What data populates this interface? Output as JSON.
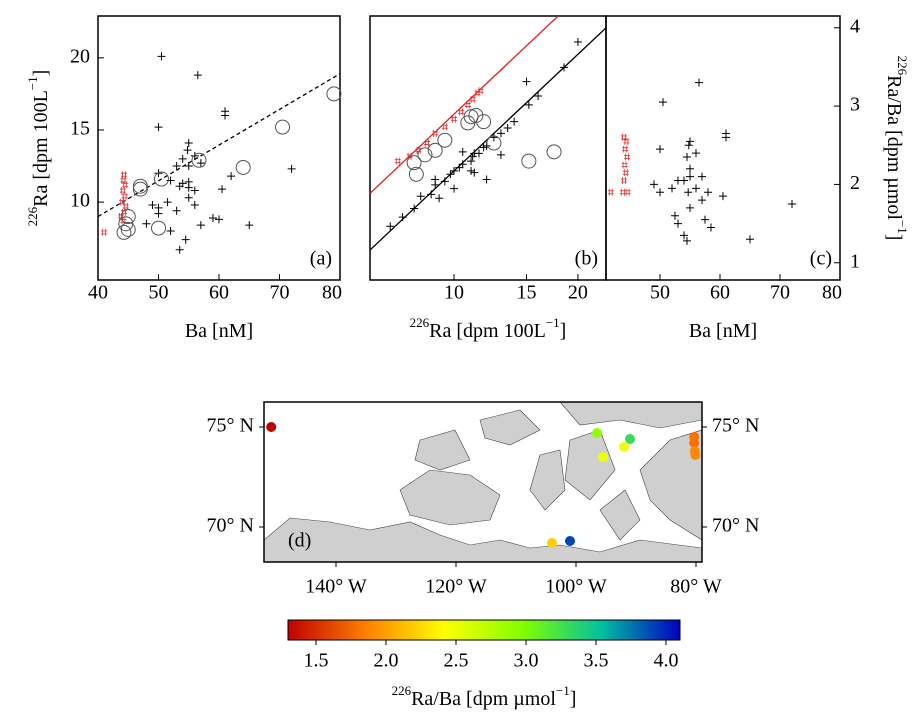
{
  "chart_data": [
    {
      "type": "scatter",
      "label": "(a)",
      "xlabel": [
        {
          "text": "Ba [nM]"
        }
      ],
      "ylabel": [
        {
          "text": "226",
          "sup": true
        },
        {
          "text": "Ra [dpm 100L"
        },
        {
          "text": "−1",
          "sup": true
        },
        {
          "text": "]"
        }
      ],
      "xlim": [
        40,
        80
      ],
      "ylim": [
        4.6,
        22.9
      ],
      "xticks": [
        40,
        50,
        60,
        70,
        80
      ],
      "yticks": [
        10,
        15,
        20
      ],
      "yaxis_side": "left",
      "lines": [
        {
          "color": "#000000",
          "dash": true,
          "x": [
            40,
            80
          ],
          "values": [
            9,
            18.9
          ]
        }
      ],
      "series": [
        {
          "marker": "+",
          "color": "#000000",
          "x": [
            50.5,
            56.5,
            61,
            61,
            50,
            55,
            54.8,
            56,
            54,
            53,
            55,
            57,
            50,
            52,
            54,
            55,
            53.5,
            55,
            56,
            60.5,
            62,
            72,
            49,
            50,
            53,
            55,
            56,
            59,
            60,
            57,
            65,
            52,
            54.5,
            53.5,
            48,
            50,
            51.5
          ],
          "values": [
            20.1,
            18.8,
            16.3,
            16.0,
            15.2,
            14.1,
            13.6,
            13.2,
            13,
            12.5,
            12.5,
            12.7,
            12.0,
            11.5,
            11.3,
            11.4,
            11.1,
            11.0,
            10.8,
            10.9,
            11.8,
            12.3,
            9.8,
            9.6,
            9.4,
            10.3,
            9.8,
            8.9,
            8.8,
            8.4,
            8.4,
            8.0,
            7.4,
            6.7,
            8.5,
            9.2,
            10.0
          ]
        },
        {
          "marker": "#",
          "color": "#e03030",
          "x": [
            44.3,
            44.2,
            44.5,
            44.1,
            44.4,
            44,
            44.6,
            44.3,
            43.8,
            44.2,
            41
          ],
          "values": [
            11.9,
            11.5,
            11.2,
            10.8,
            10.4,
            10,
            9.7,
            9.3,
            9,
            8.7,
            7.9
          ]
        },
        {
          "marker": "o",
          "color": "#555555",
          "x": [
            79,
            70.5,
            56.7,
            64,
            50.5,
            47,
            47,
            50,
            45,
            44.6,
            44.3,
            45
          ],
          "values": [
            17.5,
            15.2,
            12.9,
            12.4,
            11.6,
            11.1,
            10.9,
            8.2,
            9.0,
            8.5,
            7.9,
            8.1
          ]
        }
      ]
    },
    {
      "type": "scatter",
      "label": "(b)",
      "xlabel": [
        {
          "text": "226",
          "sup": true
        },
        {
          "text": "Ra [dpm 100L"
        },
        {
          "text": "−1",
          "sup": true
        },
        {
          "text": "]"
        }
      ],
      "xlim": [
        6.25,
        23.4
      ],
      "ylim": [
        5.23,
        25.1
      ],
      "xlog": true,
      "ylog": true,
      "xticks": [
        10,
        15,
        20
      ],
      "yaxis_side": "none",
      "lines": [
        {
          "color": "#000000",
          "dash": false,
          "x": [
            6.25,
            23.4
          ],
          "values": [
            6.25,
            23.4
          ]
        },
        {
          "color": "#e02020",
          "dash": false,
          "x": [
            6.25,
            17.9
          ],
          "values": [
            8.75,
            25.1
          ]
        }
      ],
      "series": [
        {
          "marker": "+",
          "color": "#000000",
          "x": [
            7,
            7.5,
            8,
            8.3,
            8.8,
            9,
            9.5,
            9.8,
            10,
            10.3,
            10.5,
            11,
            11.1,
            11.2,
            11.5,
            11.8,
            12,
            12.5,
            13,
            13.5,
            14,
            15.2,
            16,
            18.5,
            20,
            10,
            9.2,
            11,
            12,
            10.5,
            15,
            11.2,
            13,
            9
          ],
          "values": [
            7.2,
            7.6,
            8.0,
            8.6,
            8.7,
            9.2,
            9.4,
            9.8,
            10.0,
            10.2,
            10.4,
            10.6,
            10.9,
            11.1,
            11.1,
            11.5,
            11.6,
            12.2,
            12.5,
            12.9,
            13.4,
            14.8,
            15.6,
            18.5,
            21.5,
            9.0,
            8.5,
            10.0,
            9.5,
            11.2,
            17.0,
            9.9,
            11,
            9.5
          ]
        },
        {
          "marker": "#",
          "color": "#e03030",
          "x": [
            7.3,
            7.8,
            8.2,
            8.6,
            9,
            9.5,
            10,
            10.4,
            10.8,
            11.1,
            11.4,
            11.6
          ],
          "values": [
            10.6,
            10.9,
            11.3,
            11.8,
            12.5,
            13.0,
            13.6,
            14.2,
            14.8,
            15.3,
            15.9,
            16.1
          ]
        },
        {
          "marker": "o",
          "color": "#555555",
          "x": [
            8,
            8.5,
            9,
            9.5,
            10.8,
            11.3,
            11.8,
            12.5,
            15.2,
            17.5,
            8.1,
            11
          ],
          "values": [
            10.5,
            11,
            11.3,
            12,
            13.3,
            13.9,
            13.4,
            11.8,
            10.6,
            11.2,
            9.8,
            13.8
          ]
        }
      ]
    },
    {
      "type": "scatter",
      "label": "(c)",
      "xlabel": [
        {
          "text": "Ba [nM]"
        }
      ],
      "ylabel": [
        {
          "text": "226",
          "sup": true
        },
        {
          "text": "Ra/Ba [dpm µmol"
        },
        {
          "text": "−1",
          "sup": true
        },
        {
          "text": "]"
        }
      ],
      "xlim": [
        41,
        80
      ],
      "ylim": [
        0.78,
        4.15
      ],
      "xticks": [
        50,
        60,
        70,
        80
      ],
      "yticks": [
        1,
        2,
        3,
        4
      ],
      "yaxis_side": "right",
      "lines": [],
      "series": [
        {
          "marker": "+",
          "color": "#000000",
          "x": [
            50.5,
            56.5,
            61,
            61,
            50,
            55,
            54.8,
            54.5,
            56,
            55,
            57,
            53,
            54,
            55,
            56,
            49,
            52,
            58,
            60.5,
            55,
            53,
            57.5,
            52.5,
            54,
            54.5,
            65,
            72,
            58.5,
            50,
            54.7,
            57
          ],
          "values": [
            3.05,
            3.3,
            2.65,
            2.6,
            2.45,
            2.55,
            2.5,
            2.35,
            2.4,
            2.2,
            2.1,
            2.05,
            2.05,
            2.1,
            1.95,
            2.0,
            1.95,
            1.9,
            1.85,
            1.7,
            1.5,
            1.55,
            1.6,
            1.35,
            1.28,
            1.3,
            1.75,
            1.45,
            1.9,
            1.9,
            1.8
          ]
        },
        {
          "marker": "#",
          "color": "#e03030",
          "x": [
            44,
            44.4,
            44.2,
            44.5,
            44.1,
            44.3,
            44,
            44.6,
            43.8,
            41.8
          ],
          "values": [
            2.6,
            2.55,
            2.45,
            2.35,
            2.25,
            2.15,
            2.05,
            1.9,
            1.9,
            1.9
          ]
        }
      ]
    },
    {
      "type": "map",
      "label": "(d)",
      "xlim": [
        -152,
        -79
      ],
      "ylim": [
        68.25,
        76.25
      ],
      "xticks": [
        {
          "value": -140,
          "label": "140° W"
        },
        {
          "value": -120,
          "label": "120° W"
        },
        {
          "value": -100,
          "label": "100° W"
        },
        {
          "value": -80,
          "label": "80° W"
        }
      ],
      "yticks": [
        {
          "value": 75,
          "label": "75° N"
        },
        {
          "value": 70,
          "label": "70° N"
        }
      ],
      "points": {
        "x": [
          -150.8,
          -96.5,
          -91,
          -95.5,
          -92,
          -80.3,
          -80.3,
          -80.2,
          -80.1,
          -104,
          -101
        ],
        "y": [
          75,
          74.7,
          74.4,
          73.5,
          74.0,
          74.5,
          74.2,
          73.8,
          73.6,
          69.2,
          69.3
        ],
        "values": [
          1.3,
          2.9,
          3.3,
          2.5,
          2.5,
          1.8,
          1.8,
          1.9,
          1.9,
          2.2,
          3.9
        ]
      },
      "colorbar": {
        "label": [
          {
            "text": "226",
            "sup": true
          },
          {
            "text": "Ra/Ba [dpm µmol"
          },
          {
            "text": "−1",
            "sup": true
          },
          {
            "text": "]"
          }
        ],
        "clim": [
          1.3,
          4.1
        ],
        "colors": [
          "#c00000",
          "#ff8000",
          "#ffff00",
          "#80ff00",
          "#00c0a0",
          "#0000c0"
        ],
        "ticks": [
          1.5,
          {
            "value": 2,
            "label": "2.0"
          },
          2.5,
          {
            "value": 3,
            "label": "3.0"
          },
          3.5,
          {
            "value": 4,
            "label": "4.0"
          }
        ]
      }
    }
  ]
}
